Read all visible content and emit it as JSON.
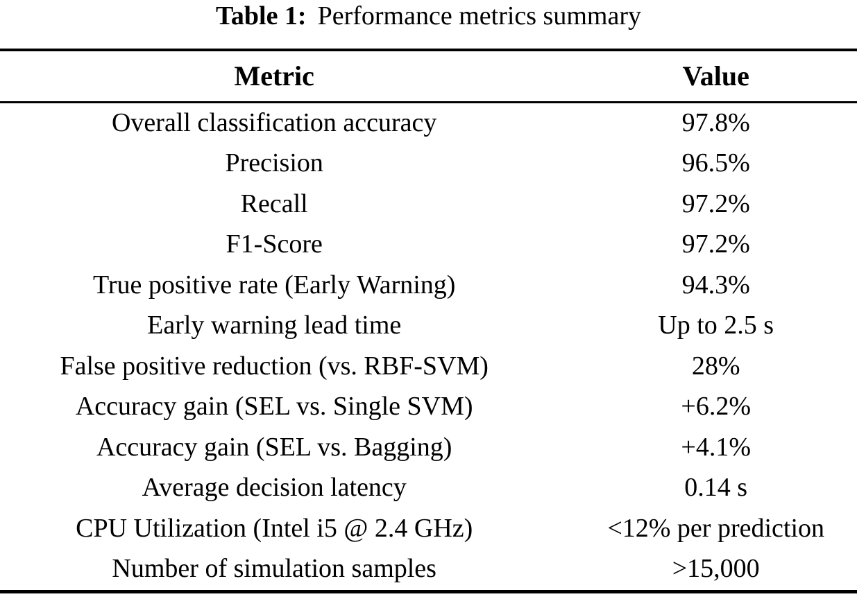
{
  "caption": {
    "label": "Table 1:",
    "text": "Performance metrics summary"
  },
  "table": {
    "columns": [
      "Metric",
      "Value"
    ],
    "rows": [
      {
        "metric": "Overall classification accuracy",
        "value": "97.8%"
      },
      {
        "metric": "Precision",
        "value": "96.5%"
      },
      {
        "metric": "Recall",
        "value": "97.2%"
      },
      {
        "metric": "F1-Score",
        "value": "97.2%"
      },
      {
        "metric": "True positive rate (Early Warning)",
        "value": "94.3%"
      },
      {
        "metric": "Early warning lead time",
        "value": "Up to 2.5 s"
      },
      {
        "metric": "False positive reduction (vs. RBF-SVM)",
        "value": "28%"
      },
      {
        "metric": "Accuracy gain (SEL vs. Single SVM)",
        "value": "+6.2%"
      },
      {
        "metric": "Accuracy gain (SEL vs. Bagging)",
        "value": "+4.1%"
      },
      {
        "metric": "Average decision latency",
        "value": "0.14 s"
      },
      {
        "metric": "CPU Utilization (Intel i5 @ 2.4 GHz)",
        "value": "<12% per prediction"
      },
      {
        "metric": "Number of simulation samples",
        "value": ">15,000"
      }
    ]
  },
  "colors": {
    "background": "#ffffff",
    "text": "#000000",
    "rule": "#000000"
  }
}
